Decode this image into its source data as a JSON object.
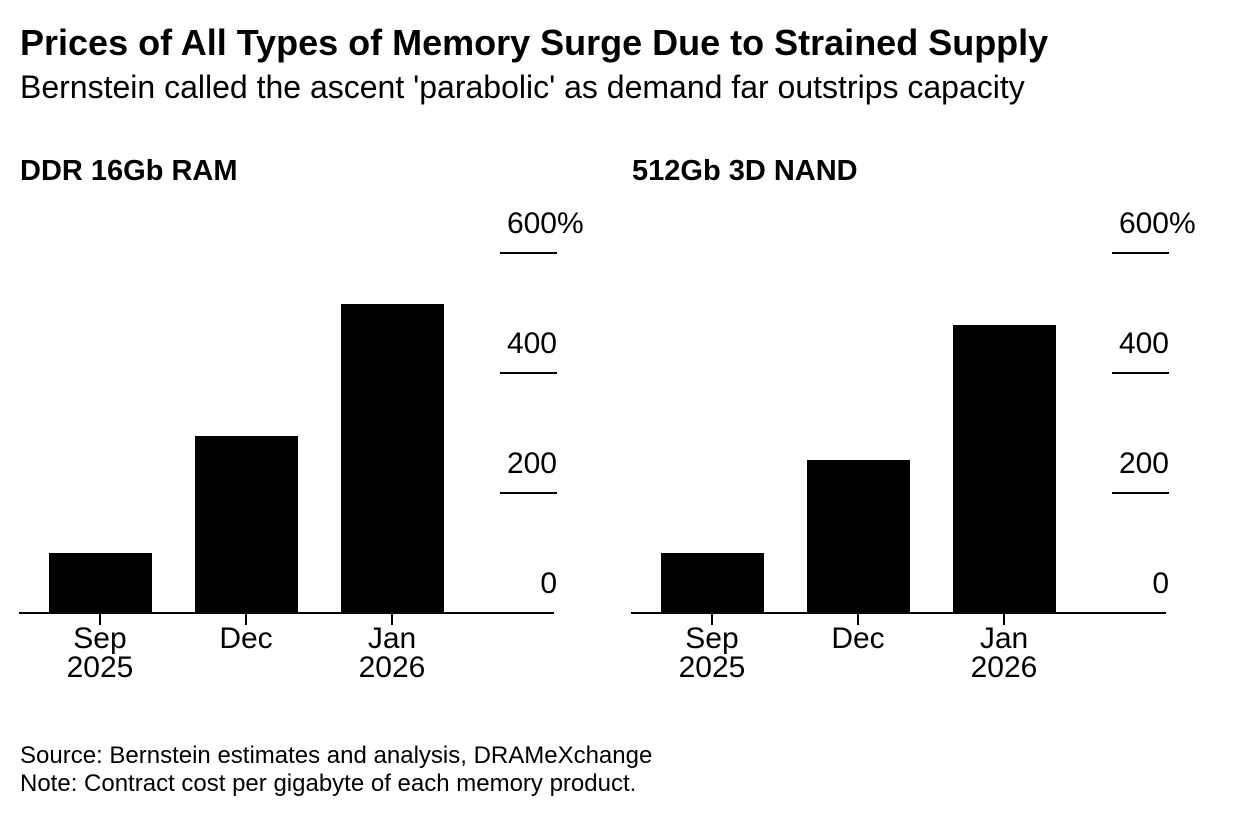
{
  "header": {
    "title": "Prices of All Types of Memory Surge Due to Strained Supply",
    "subtitle": "Bernstein called the ascent 'parabolic' as demand far outstrips capacity"
  },
  "chart_data": [
    {
      "type": "bar",
      "title": "DDR 16Gb RAM",
      "categories": [
        [
          "Sep",
          "2025"
        ],
        [
          "Dec"
        ],
        [
          "Jan",
          "2026"
        ]
      ],
      "values": [
        100,
        295,
        515
      ],
      "xlabel": "",
      "ylabel": "",
      "y_axis": {
        "ticks": [
          600,
          400,
          200,
          0
        ],
        "unit": "%",
        "ylim": [
          0,
          600
        ]
      },
      "legend": "none",
      "grid": "off",
      "bar_color": "#000000"
    },
    {
      "type": "bar",
      "title": "512Gb 3D NAND",
      "categories": [
        [
          "Sep",
          "2025"
        ],
        [
          "Dec"
        ],
        [
          "Jan",
          "2026"
        ]
      ],
      "values": [
        100,
        255,
        480
      ],
      "xlabel": "",
      "ylabel": "",
      "y_axis": {
        "ticks": [
          600,
          400,
          200,
          0
        ],
        "unit": "%",
        "ylim": [
          0,
          600
        ]
      },
      "legend": "none",
      "grid": "off",
      "bar_color": "#000000"
    }
  ],
  "footer": {
    "source": "Source: Bernstein estimates and analysis, DRAMeXchange",
    "note": "Note: Contract cost per gigabyte of each memory product."
  },
  "colors": {
    "bar": "#000000",
    "text": "#000000",
    "background": "#ffffff"
  }
}
